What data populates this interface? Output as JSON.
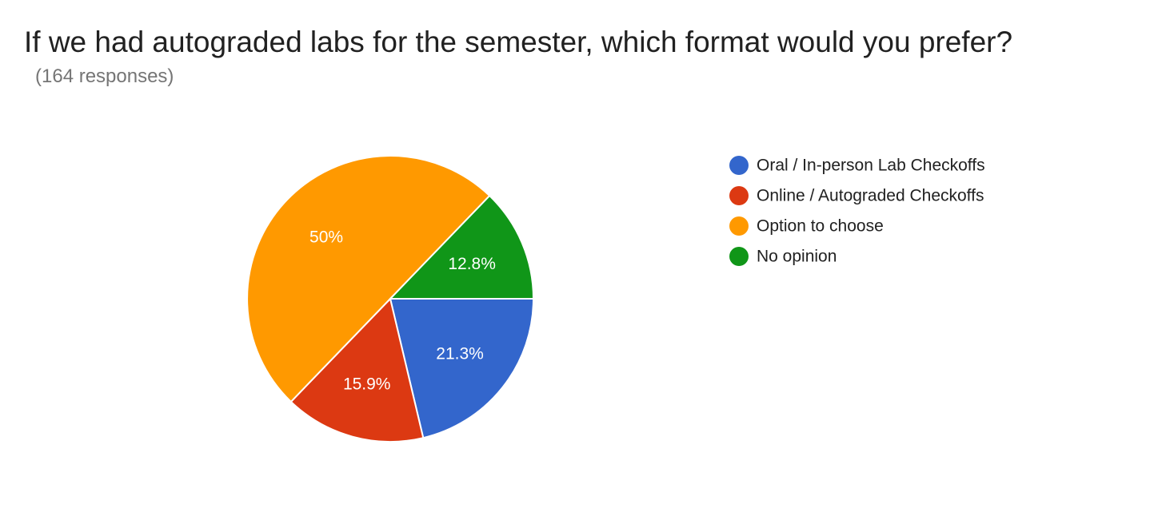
{
  "chart_data": {
    "type": "pie",
    "title": "If we had autograded labs for the semester, which format would you prefer?",
    "subtitle": "(164 responses)",
    "legend_position": "right",
    "slices": [
      {
        "label": "Oral / In-person Lab Checkoffs",
        "value": 21.3,
        "display": "21.3%",
        "color": "#3366cc"
      },
      {
        "label": "Online / Autograded Checkoffs",
        "value": 15.9,
        "display": "15.9%",
        "color": "#dc3912"
      },
      {
        "label": "Option to choose",
        "value": 50.0,
        "display": "50%",
        "color": "#ff9900"
      },
      {
        "label": "No opinion",
        "value": 12.8,
        "display": "12.8%",
        "color": "#109618"
      }
    ]
  }
}
